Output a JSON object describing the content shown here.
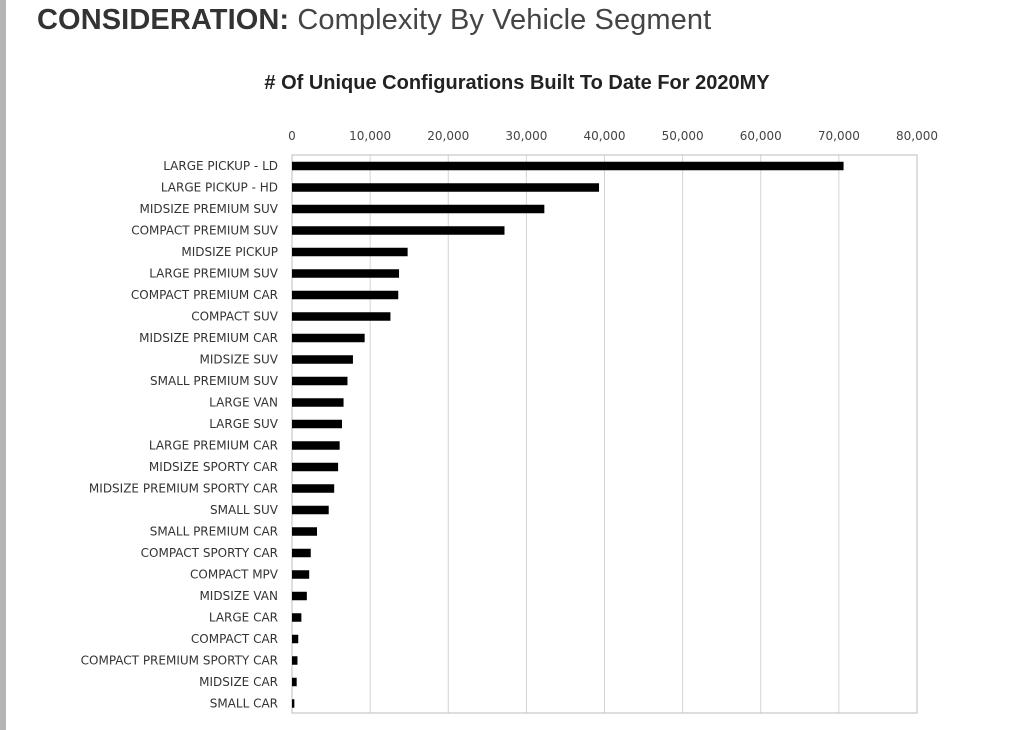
{
  "slide": {
    "title_strong": "CONSIDERATION:",
    "title_light": " Complexity By Vehicle Segment"
  },
  "colors": {
    "bar": "#000000",
    "gridline": "#d4d4d4",
    "frame": "#bdbdbd",
    "left_rule": "#b4b4b4"
  },
  "chart_data": {
    "type": "bar",
    "orientation": "horizontal",
    "title": "# Of Unique Configurations Built To Date For 2020MY",
    "xlabel": "",
    "ylabel": "",
    "xlim": [
      0,
      80000
    ],
    "x_ticks": [
      0,
      10000,
      20000,
      30000,
      40000,
      50000,
      60000,
      70000,
      80000
    ],
    "x_tick_labels": [
      "0",
      "10,000",
      "20,000",
      "30,000",
      "40,000",
      "50,000",
      "60,000",
      "70,000",
      "80,000"
    ],
    "x_axis_position": "top",
    "grid": true,
    "legend": "none",
    "categories": [
      "LARGE PICKUP - LD",
      "LARGE PICKUP - HD",
      "MIDSIZE PREMIUM SUV",
      "COMPACT PREMIUM SUV",
      "MIDSIZE PICKUP",
      "LARGE PREMIUM SUV",
      "COMPACT PREMIUM CAR",
      "COMPACT SUV",
      "MIDSIZE PREMIUM CAR",
      "MIDSIZE SUV",
      "SMALL PREMIUM SUV",
      "LARGE VAN",
      "LARGE SUV",
      "LARGE PREMIUM CAR",
      "MIDSIZE SPORTY CAR",
      "MIDSIZE PREMIUM SPORTY CAR",
      "SMALL SUV",
      "SMALL PREMIUM CAR",
      "COMPACT SPORTY CAR",
      "COMPACT MPV",
      "MIDSIZE VAN",
      "LARGE CAR",
      "COMPACT CAR",
      "COMPACT PREMIUM SPORTY CAR",
      "MIDSIZE CAR",
      "SMALL CAR"
    ],
    "values": [
      70600,
      39300,
      32300,
      27200,
      14800,
      13700,
      13600,
      12600,
      9300,
      7800,
      7100,
      6600,
      6400,
      6100,
      5900,
      5400,
      4700,
      3200,
      2400,
      2200,
      1900,
      1200,
      800,
      700,
      600,
      300
    ]
  }
}
